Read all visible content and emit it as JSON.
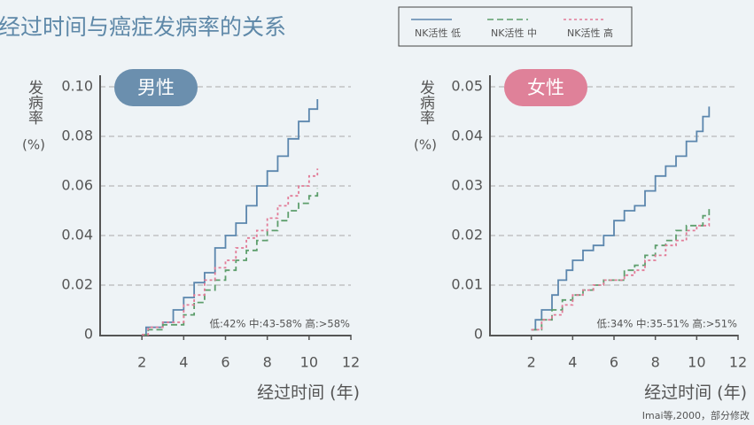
{
  "title": "经过时间与癌症发病率的关系",
  "source": "Imai等,2000，部分修改",
  "chart_data": [
    {
      "type": "line",
      "badge": "男性",
      "badge_color": "#6b8fae",
      "ylabel": "发病率",
      "yunit": "(%)",
      "xlabel": "经过时间 (年)",
      "note": "低:42% 中:43-58% 高:>58%",
      "xlim": [
        0,
        12
      ],
      "xticks": [
        2,
        4,
        6,
        8,
        10,
        12
      ],
      "ylim": [
        0,
        0.1
      ],
      "yticks": [
        0,
        0.02,
        0.04,
        0.06,
        0.08,
        {
          "value": 0.1,
          "label": "0.10"
        }
      ],
      "grid": true,
      "series": [
        {
          "name": "NK活性 低",
          "color": "#5b86ad",
          "dash": "solid",
          "x": [
            2,
            2.2,
            3,
            3.5,
            4,
            4.5,
            5,
            5.5,
            6,
            6.5,
            7,
            7.5,
            8,
            8.5,
            9,
            9.5,
            10,
            10.4
          ],
          "values": [
            0,
            0.003,
            0.005,
            0.01,
            0.015,
            0.021,
            0.025,
            0.035,
            0.04,
            0.045,
            0.052,
            0.06,
            0.066,
            0.072,
            0.079,
            0.086,
            0.091,
            0.095
          ]
        },
        {
          "name": "NK活性 中",
          "color": "#5d9e6c",
          "dash": "dashed",
          "x": [
            2,
            2.3,
            3,
            4,
            4.5,
            5,
            5.5,
            6,
            6.5,
            7,
            7.5,
            8,
            8.5,
            9,
            9.5,
            10,
            10.4
          ],
          "values": [
            0,
            0.002,
            0.004,
            0.008,
            0.013,
            0.018,
            0.022,
            0.026,
            0.03,
            0.034,
            0.038,
            0.042,
            0.046,
            0.05,
            0.053,
            0.056,
            0.059
          ]
        },
        {
          "name": "NK活性 高",
          "color": "#e27b97",
          "dash": "dotted",
          "x": [
            2,
            2.3,
            3,
            4,
            4.5,
            5,
            5.5,
            6,
            6.5,
            7,
            7.5,
            8,
            8.5,
            9,
            9.5,
            10,
            10.4
          ],
          "values": [
            0,
            0.003,
            0.005,
            0.012,
            0.016,
            0.022,
            0.027,
            0.03,
            0.035,
            0.039,
            0.042,
            0.047,
            0.052,
            0.056,
            0.06,
            0.064,
            0.067
          ]
        }
      ]
    },
    {
      "type": "line",
      "badge": "女性",
      "badge_color": "#df8199",
      "ylabel": "发病率",
      "yunit": "(%)",
      "xlabel": "经过时间 (年)",
      "note": "低:34% 中:35-51% 高:>51%",
      "xlim": [
        0,
        12
      ],
      "xticks": [
        2,
        4,
        6,
        8,
        10,
        12
      ],
      "ylim": [
        0,
        0.05
      ],
      "yticks": [
        0,
        0.01,
        0.02,
        0.03,
        0.04,
        0.05
      ],
      "grid": true,
      "series": [
        {
          "color": "#5b86ad",
          "dash": "solid",
          "x": [
            2,
            2.2,
            2.5,
            3,
            3.3,
            3.7,
            4,
            4.5,
            5,
            5.5,
            6,
            6.5,
            7,
            7.5,
            8,
            8.5,
            9,
            9.5,
            10,
            10.3,
            10.6
          ],
          "values": [
            0.001,
            0.003,
            0.005,
            0.008,
            0.011,
            0.013,
            0.015,
            0.017,
            0.018,
            0.02,
            0.023,
            0.025,
            0.026,
            0.029,
            0.032,
            0.034,
            0.036,
            0.039,
            0.041,
            0.044,
            0.046
          ]
        },
        {
          "color": "#5d9e6c",
          "dash": "dashed",
          "x": [
            2,
            2.5,
            3,
            3.5,
            4,
            4.5,
            5,
            5.5,
            6,
            6.5,
            7,
            7.5,
            8,
            8.5,
            9,
            9.5,
            10,
            10.3,
            10.6
          ],
          "values": [
            0.001,
            0.003,
            0.005,
            0.007,
            0.008,
            0.009,
            0.01,
            0.011,
            0.011,
            0.013,
            0.014,
            0.016,
            0.018,
            0.019,
            0.021,
            0.022,
            0.022,
            0.024,
            0.026
          ]
        },
        {
          "color": "#e27b97",
          "dash": "dotted",
          "x": [
            2,
            2.5,
            3,
            3.5,
            4,
            4.5,
            5,
            5.5,
            6,
            6.5,
            7,
            7.5,
            8,
            8.5,
            9,
            9.5,
            10,
            10.6
          ],
          "values": [
            0.001,
            0.003,
            0.004,
            0.006,
            0.008,
            0.009,
            0.01,
            0.011,
            0.011,
            0.012,
            0.013,
            0.015,
            0.016,
            0.018,
            0.019,
            0.021,
            0.022,
            0.024
          ]
        }
      ]
    }
  ]
}
